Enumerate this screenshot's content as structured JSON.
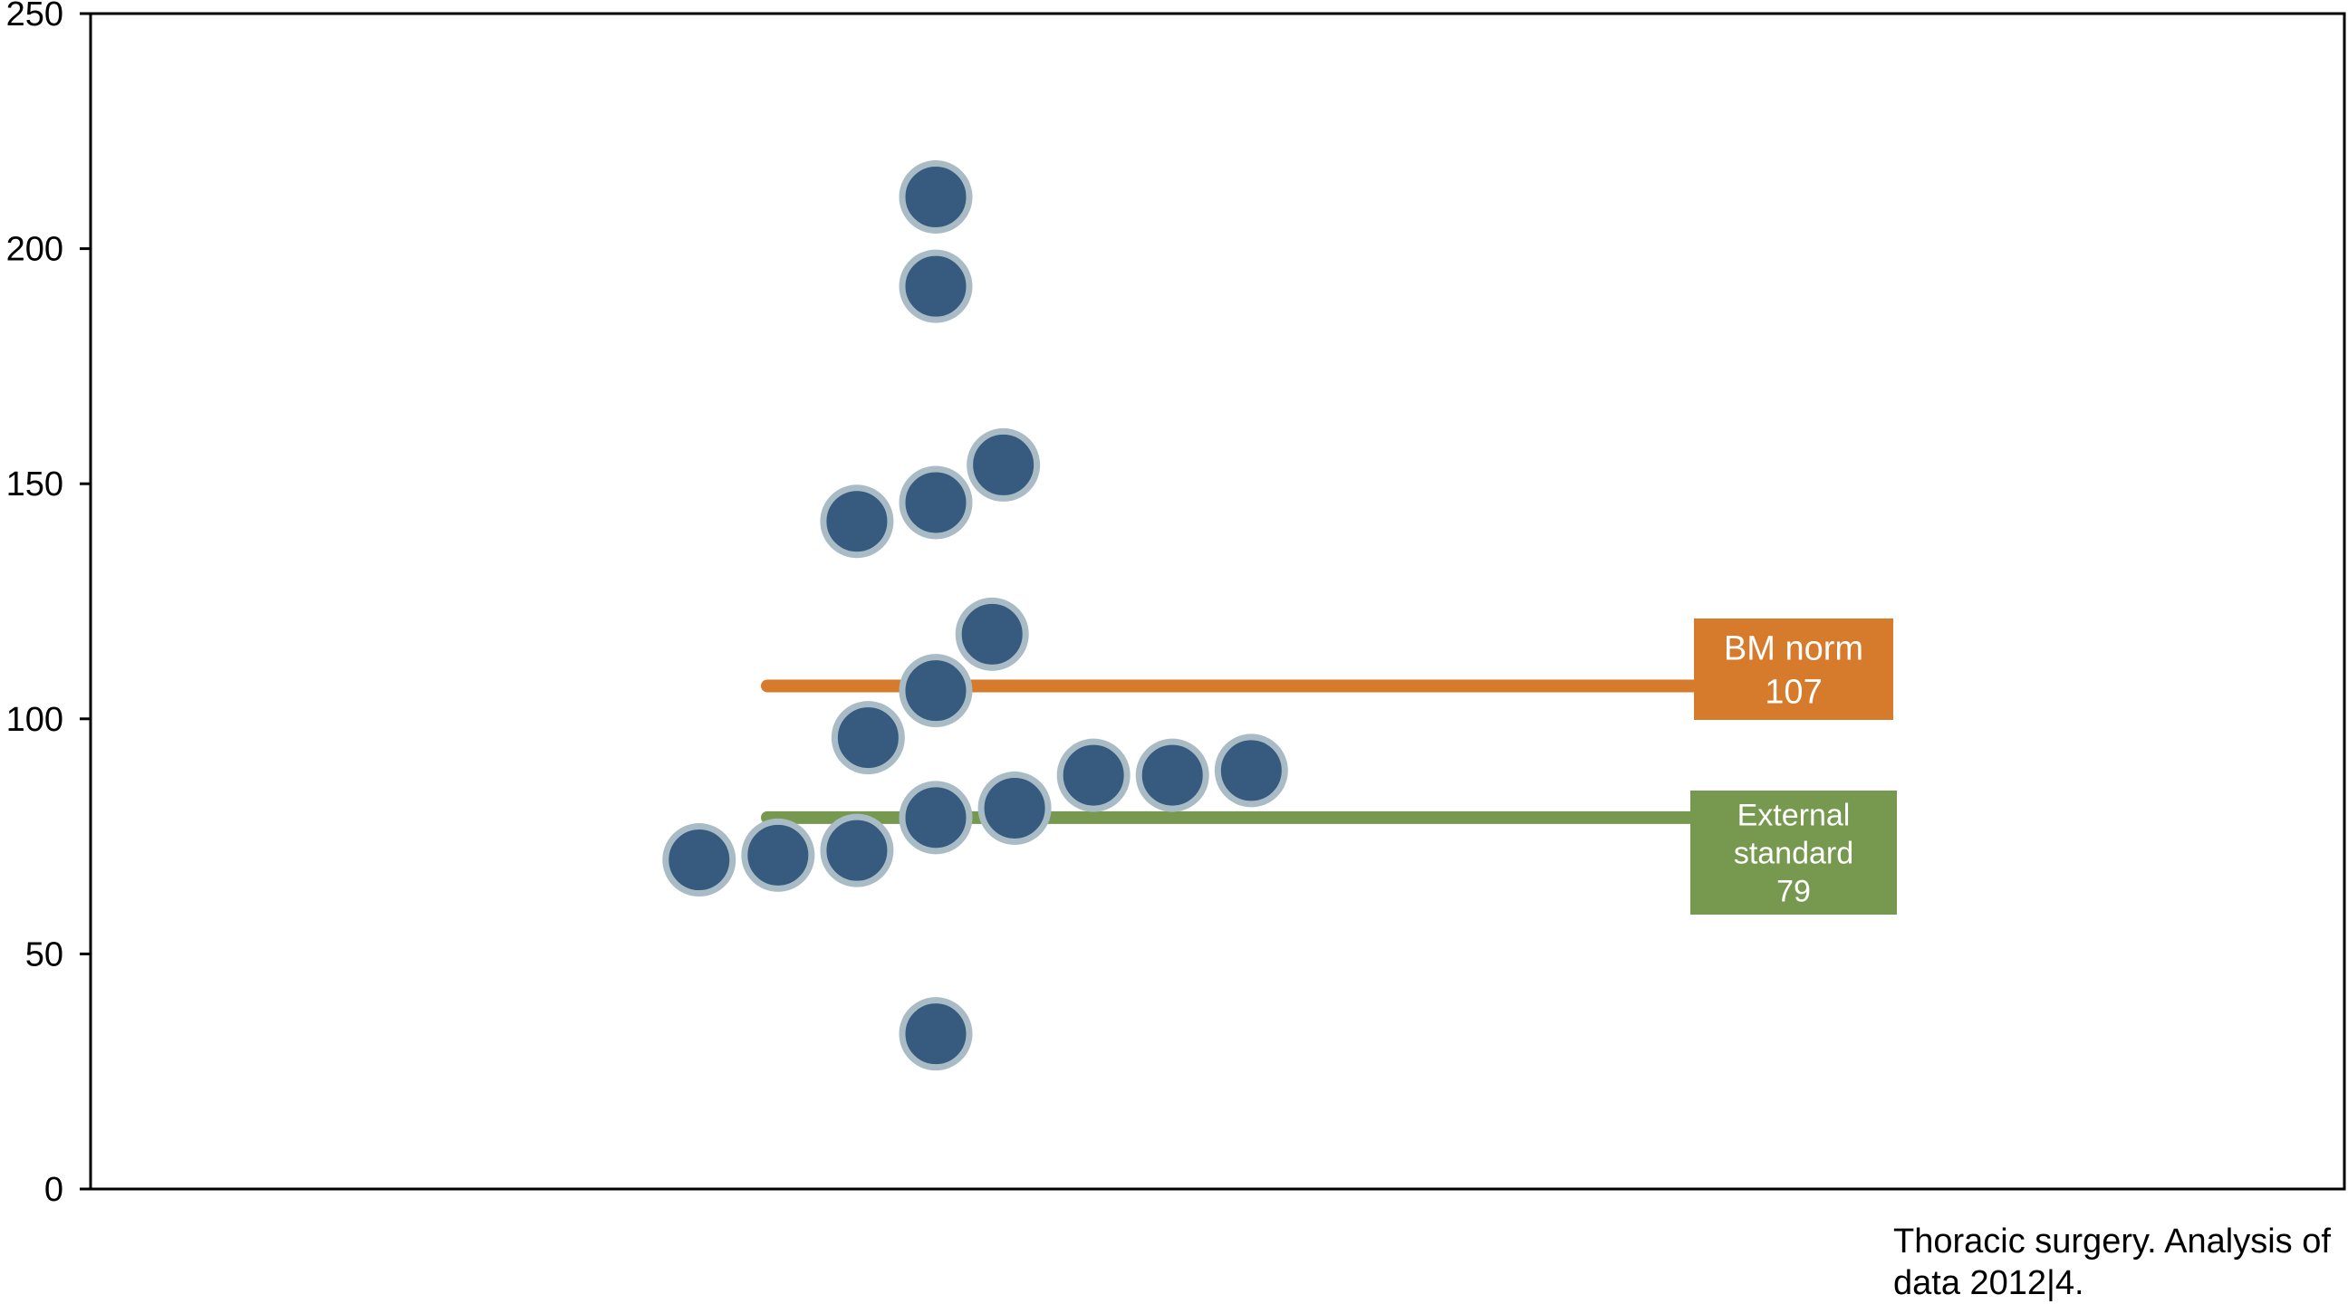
{
  "chart_data": {
    "type": "scatter",
    "title": "",
    "xlabel": "",
    "ylabel": "",
    "ylim": [
      0,
      250
    ],
    "yticks": [
      0,
      50,
      100,
      150,
      200,
      250
    ],
    "grid": false,
    "legend": "none",
    "points": [
      {
        "x": 0.27,
        "y": 70
      },
      {
        "x": 0.305,
        "y": 71
      },
      {
        "x": 0.34,
        "y": 72
      },
      {
        "x": 0.345,
        "y": 96
      },
      {
        "x": 0.34,
        "y": 142
      },
      {
        "x": 0.375,
        "y": 33
      },
      {
        "x": 0.375,
        "y": 79
      },
      {
        "x": 0.375,
        "y": 106
      },
      {
        "x": 0.375,
        "y": 146
      },
      {
        "x": 0.375,
        "y": 192
      },
      {
        "x": 0.375,
        "y": 211
      },
      {
        "x": 0.41,
        "y": 81
      },
      {
        "x": 0.4,
        "y": 118
      },
      {
        "x": 0.405,
        "y": 154
      },
      {
        "x": 0.445,
        "y": 88
      },
      {
        "x": 0.48,
        "y": 88
      },
      {
        "x": 0.515,
        "y": 89
      }
    ],
    "reference_lines": [
      {
        "name": "BM norm",
        "value": 107,
        "label_lines": [
          "BM norm",
          "107"
        ],
        "color": "#d67a2c"
      },
      {
        "name": "External standard",
        "value": 79,
        "label_lines": [
          "External",
          "standard",
          "79"
        ],
        "color": "#76994f"
      }
    ],
    "colors": {
      "point_fill": "#375a7f",
      "point_stroke": "#a9bcc6",
      "axis": "#000000"
    }
  },
  "caption": {
    "line1": "Thoracic surgery. Analysis of",
    "line2": "data 2012|4."
  }
}
